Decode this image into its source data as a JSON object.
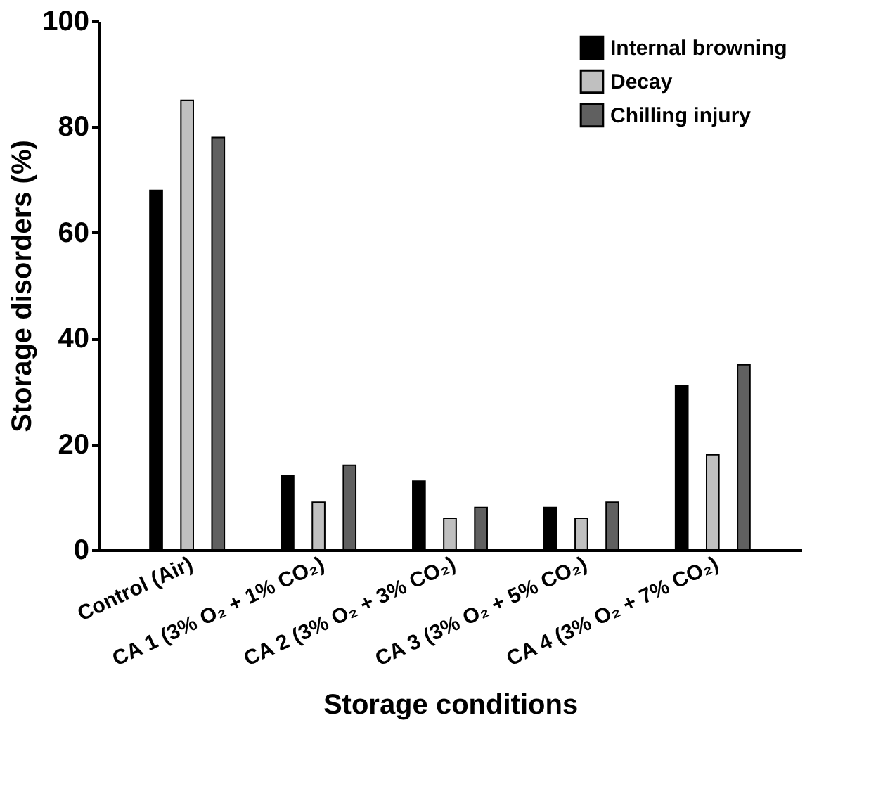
{
  "chart_data": {
    "type": "bar",
    "xlabel": "Storage conditions",
    "ylabel": "Storage disorders (%)",
    "categories": [
      "Control (Air)",
      "CA 1 (3% O₂ + 1% CO₂)",
      "CA 2 (3% O₂ + 3% CO₂)",
      "CA 3 (3% O₂ + 5% CO₂)",
      "CA 4 (3% O₂ + 7% CO₂)"
    ],
    "series": [
      {
        "name": "Internal browning",
        "color": "#000000",
        "values": [
          68,
          14,
          13,
          8,
          31
        ]
      },
      {
        "name": "Decay",
        "color": "#c0c0c0",
        "values": [
          85,
          9,
          6,
          6,
          18
        ]
      },
      {
        "name": "Chilling injury",
        "color": "#606060",
        "values": [
          78,
          16,
          8,
          9,
          35
        ]
      }
    ],
    "ylim": [
      0,
      100
    ],
    "yticks": [
      0,
      20,
      40,
      60,
      80,
      100
    ],
    "grid": false,
    "legend": "top right"
  }
}
